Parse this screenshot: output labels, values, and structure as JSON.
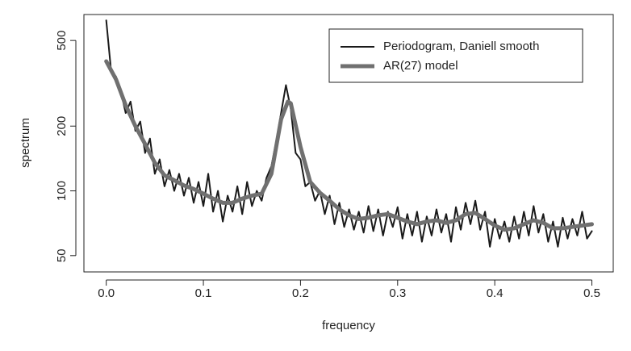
{
  "chart_data": {
    "type": "line",
    "xlabel": "frequency",
    "ylabel": "spectrum",
    "log_y": true,
    "xlim": [
      -0.023,
      0.522
    ],
    "ylim": [
      42,
      660
    ],
    "xticks": [
      {
        "value": 0,
        "label": "0.0"
      },
      0.1,
      0.2,
      0.3,
      0.4,
      0.5
    ],
    "yticks": [
      50,
      100,
      200,
      500
    ],
    "legend": "top-right",
    "series": [
      {
        "name": "Periodogram, Daniell smooth",
        "color": "#1a1a1a",
        "width": 2,
        "x": [
          0,
          0.005,
          0.01,
          0.015,
          0.02,
          0.025,
          0.03,
          0.035,
          0.04,
          0.045,
          0.05,
          0.055,
          0.06,
          0.065,
          0.07,
          0.075,
          0.08,
          0.085,
          0.09,
          0.095,
          0.1,
          0.105,
          0.11,
          0.115,
          0.12,
          0.125,
          0.13,
          0.135,
          0.14,
          0.145,
          0.15,
          0.155,
          0.16,
          0.165,
          0.17,
          0.175,
          0.18,
          0.185,
          0.19,
          0.195,
          0.2,
          0.205,
          0.21,
          0.215,
          0.22,
          0.225,
          0.23,
          0.235,
          0.24,
          0.245,
          0.25,
          0.255,
          0.26,
          0.265,
          0.27,
          0.275,
          0.28,
          0.285,
          0.29,
          0.295,
          0.3,
          0.305,
          0.31,
          0.315,
          0.32,
          0.325,
          0.33,
          0.335,
          0.34,
          0.345,
          0.35,
          0.355,
          0.36,
          0.365,
          0.37,
          0.375,
          0.38,
          0.385,
          0.39,
          0.395,
          0.4,
          0.405,
          0.41,
          0.415,
          0.42,
          0.425,
          0.43,
          0.435,
          0.44,
          0.445,
          0.45,
          0.455,
          0.46,
          0.465,
          0.47,
          0.475,
          0.48,
          0.485,
          0.49,
          0.495,
          0.5
        ],
        "values": [
          620,
          360,
          340,
          290,
          230,
          260,
          190,
          210,
          150,
          175,
          120,
          140,
          105,
          125,
          100,
          120,
          95,
          115,
          88,
          110,
          85,
          120,
          80,
          100,
          72,
          95,
          80,
          105,
          78,
          110,
          85,
          100,
          90,
          115,
          130,
          170,
          230,
          310,
          240,
          150,
          140,
          105,
          110,
          90,
          100,
          78,
          95,
          70,
          88,
          68,
          82,
          66,
          80,
          64,
          85,
          65,
          82,
          62,
          80,
          68,
          84,
          60,
          78,
          62,
          80,
          58,
          76,
          62,
          82,
          64,
          78,
          58,
          84,
          66,
          88,
          70,
          90,
          66,
          80,
          55,
          74,
          60,
          72,
          58,
          76,
          60,
          80,
          62,
          85,
          64,
          78,
          58,
          72,
          55,
          75,
          60,
          74,
          62,
          80,
          60,
          65
        ]
      },
      {
        "name": "AR(27) model",
        "color": "#707070",
        "width": 5,
        "x": [
          0,
          0.01,
          0.02,
          0.03,
          0.04,
          0.05,
          0.06,
          0.07,
          0.08,
          0.09,
          0.1,
          0.11,
          0.12,
          0.13,
          0.14,
          0.15,
          0.16,
          0.17,
          0.18,
          0.187,
          0.19,
          0.2,
          0.21,
          0.22,
          0.23,
          0.24,
          0.25,
          0.26,
          0.27,
          0.28,
          0.29,
          0.3,
          0.31,
          0.32,
          0.33,
          0.34,
          0.35,
          0.36,
          0.37,
          0.38,
          0.39,
          0.4,
          0.41,
          0.42,
          0.43,
          0.44,
          0.45,
          0.46,
          0.47,
          0.48,
          0.49,
          0.5
        ],
        "values": [
          400,
          330,
          250,
          200,
          165,
          135,
          118,
          112,
          106,
          102,
          97,
          92,
          88,
          88,
          92,
          95,
          97,
          120,
          215,
          260,
          255,
          160,
          110,
          98,
          90,
          82,
          77,
          74,
          75,
          77,
          78,
          75,
          72,
          70,
          72,
          73,
          71,
          73,
          78,
          79,
          74,
          69,
          66,
          67,
          70,
          73,
          71,
          67,
          67,
          68,
          69,
          70
        ]
      }
    ]
  }
}
